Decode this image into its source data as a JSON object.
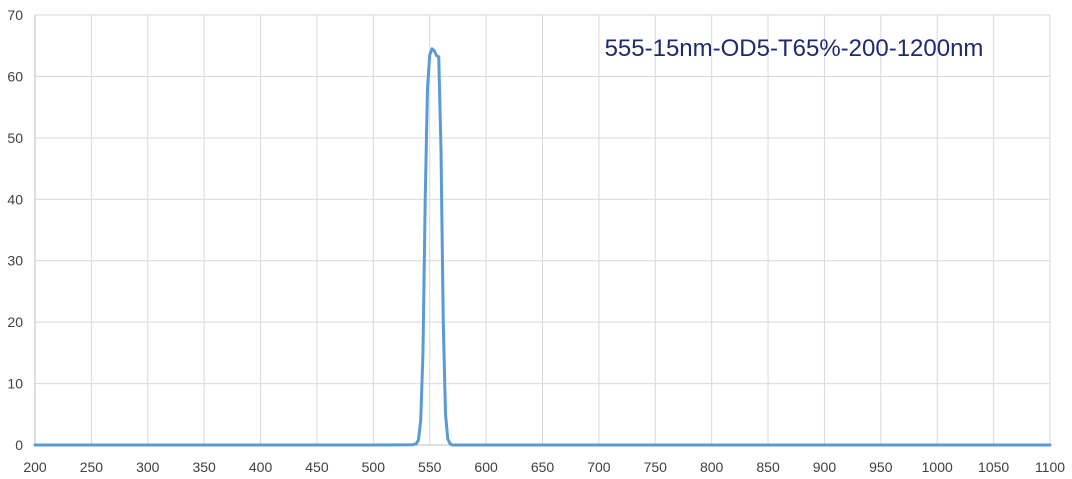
{
  "chart_data": {
    "type": "line",
    "title": "555-15nm-OD5-T65%-200-1200nm",
    "subtitle": "",
    "xlabel": "",
    "ylabel": "",
    "xlim": [
      200,
      1100
    ],
    "ylim": [
      0,
      70
    ],
    "x_ticks": [
      "200",
      "250",
      "300",
      "350",
      "400",
      "450",
      "500",
      "550",
      "600",
      "650",
      "700",
      "750",
      "800",
      "850",
      "900",
      "950",
      "1000",
      "1050",
      "1100"
    ],
    "y_ticks": [
      "0",
      "10",
      "20",
      "30",
      "40",
      "50",
      "60",
      "70"
    ],
    "grid": true,
    "legend": "none",
    "line_color": "#5b9bd5",
    "title_color": "#1f2a6d",
    "series": [
      {
        "x": [
          200,
          500,
          535,
          538,
          540,
          542,
          544,
          546,
          548,
          550,
          552,
          554,
          556,
          558,
          560,
          562,
          564,
          566,
          568,
          570,
          600,
          1100
        ],
        "y": [
          0,
          0,
          0.05,
          0.2,
          0.8,
          4,
          15,
          40,
          58,
          63.5,
          64.5,
          64.2,
          63.4,
          63.2,
          48,
          20,
          5,
          1,
          0.2,
          0,
          0,
          0
        ]
      }
    ]
  }
}
